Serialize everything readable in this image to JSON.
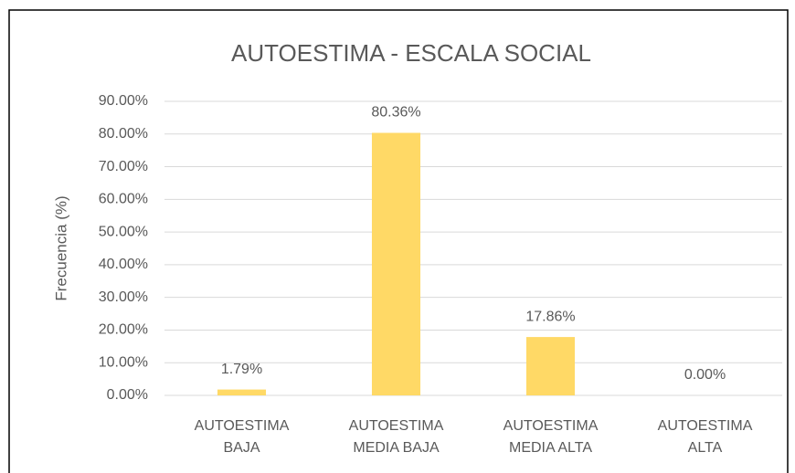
{
  "chart_data": {
    "type": "bar",
    "title": "AUTOESTIMA - ESCALA SOCIAL",
    "y_label": "Frecuencia (%)",
    "categories": [
      "AUTOESTIMA BAJA",
      "AUTOESTIMA MEDIA BAJA",
      "AUTOESTIMA MEDIA ALTA",
      "AUTOESTIMA ALTA"
    ],
    "values": [
      1.79,
      80.36,
      17.86,
      0
    ],
    "value_labels": [
      "1.79%",
      "80.36%",
      "17.86%",
      "0.00%"
    ],
    "color": "#ffd966",
    "ylim": [
      0,
      90
    ],
    "yticks": [
      {
        "value": 0,
        "label": "0.00%"
      },
      {
        "value": 10,
        "label": "10.00%"
      },
      {
        "value": 20,
        "label": "20.00%"
      },
      {
        "value": 30,
        "label": "30.00%"
      },
      {
        "value": 40,
        "label": "40.00%"
      },
      {
        "value": 50,
        "label": "50.00%"
      },
      {
        "value": 60,
        "label": "60.00%"
      },
      {
        "value": 70,
        "label": "70.00%"
      },
      {
        "value": 80,
        "label": "80.00%"
      },
      {
        "value": 90,
        "label": "90.00%"
      }
    ],
    "grid": true
  }
}
